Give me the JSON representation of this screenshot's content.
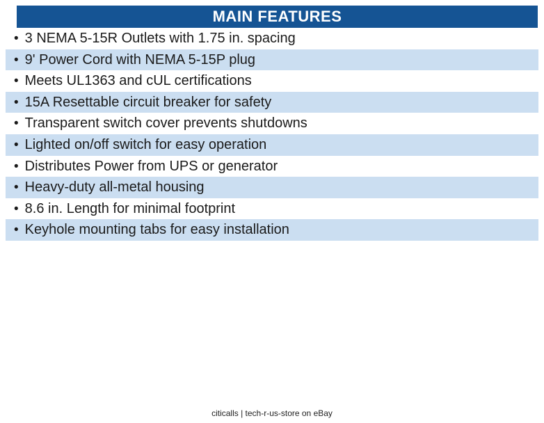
{
  "header": {
    "title": "MAIN FEATURES",
    "bg_color": "#155494",
    "text_color": "#FFFFFF"
  },
  "features": {
    "bullet": "•",
    "stripe_color": "#CBDEF1",
    "items": [
      "3 NEMA 5-15R Outlets with 1.75 in. spacing",
      "9' Power Cord with NEMA 5-15P plug",
      "Meets UL1363 and cUL certifications",
      "15A Resettable circuit breaker for safety",
      "Transparent switch cover prevents shutdowns",
      "Lighted on/off switch for easy operation",
      "Distributes Power from UPS or generator",
      "Heavy-duty all-metal housing",
      "8.6 in. Length for minimal footprint",
      "Keyhole mounting tabs for easy installation"
    ]
  },
  "footer": {
    "text": "citicalls | tech-r-us-store on eBay"
  }
}
